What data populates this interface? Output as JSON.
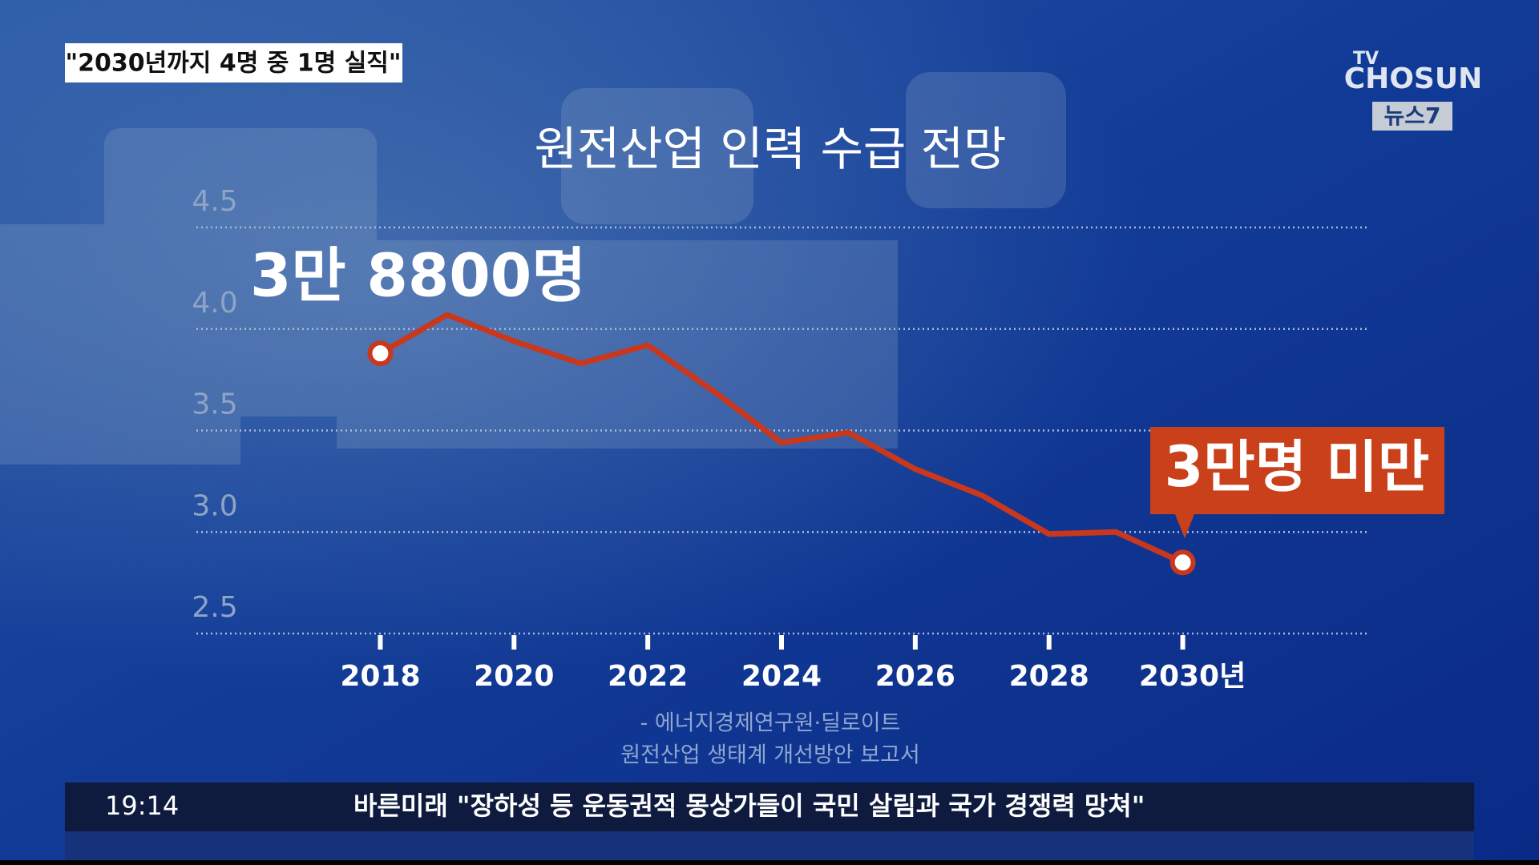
{
  "header": {
    "headline": "\"2030년까지 4명 중 1명 실직\"",
    "logo_top": "TV",
    "logo_main": "CHOSUN",
    "logo_badge": "뉴스7"
  },
  "chart_data": {
    "type": "line",
    "title": "원전산업 인력 수급 전망",
    "x": [
      2018,
      2019,
      2020,
      2021,
      2022,
      2023,
      2024,
      2025,
      2026,
      2027,
      2028,
      2029,
      2030
    ],
    "series": [
      {
        "name": "원전산업 인력",
        "color": "#c9381c",
        "values": [
          3.88,
          4.07,
          3.94,
          3.83,
          3.92,
          3.69,
          3.44,
          3.49,
          3.31,
          3.18,
          2.99,
          3.0,
          2.85
        ]
      }
    ],
    "xlim": [
      2015.25,
      2032.75
    ],
    "xticks": [
      2018,
      2020,
      2022,
      2024,
      2026,
      2028,
      {
        "value": 2030,
        "label": "2030년"
      }
    ],
    "ylim": [
      2.5,
      4.5
    ],
    "yticks": [
      2.5,
      {
        "value": 3,
        "label": "3.0"
      },
      3.5,
      {
        "value": 4,
        "label": "4.0"
      },
      4.5
    ],
    "grid": true,
    "annotations": [
      "3만 8800명",
      "3만명 미만"
    ],
    "source": [
      "- 에너지경제연구원·딜로이트",
      "원전산업 생태계 개선방안 보고서"
    ]
  },
  "ticker": {
    "time": "19:14",
    "text": "바른미래 \"장하성 등 운동권적 몽상가들이 국민 살림과 국가 경쟁력 망쳐\""
  }
}
